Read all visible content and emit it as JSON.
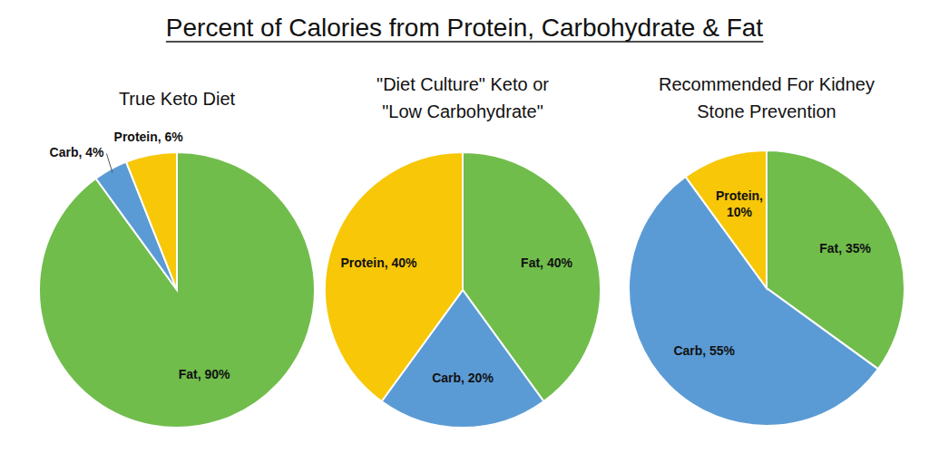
{
  "title": "Percent of Calories from Protein, Carbohydrate & Fat",
  "chart_data": [
    {
      "type": "pie",
      "title": "True Keto Diet",
      "values": [
        90,
        4,
        6
      ],
      "value_labels": [
        "Fat, 90%",
        "Carb, 4%",
        "Protein, 6%"
      ],
      "colors": [
        "#70bd4c",
        "#5b9bd5",
        "#f7c708"
      ],
      "data_labels": true
    },
    {
      "type": "pie",
      "title": "\"Diet Culture\" Keto or\n\"Low Carbohydrate\"",
      "values": [
        40,
        20,
        40
      ],
      "value_labels": [
        "Fat, 40%",
        "Carb, 20%",
        "Protein, 40%"
      ],
      "colors": [
        "#70bd4c",
        "#5b9bd5",
        "#f7c708"
      ],
      "data_labels": true
    },
    {
      "type": "pie",
      "title": "Recommended For Kidney\nStone Prevention",
      "values": [
        35,
        55,
        10
      ],
      "value_labels": [
        "Fat, 35%",
        "Carb, 55%",
        "Protein,\n10%"
      ],
      "colors": [
        "#70bd4c",
        "#5b9bd5",
        "#f7c708"
      ],
      "data_labels": true
    }
  ]
}
